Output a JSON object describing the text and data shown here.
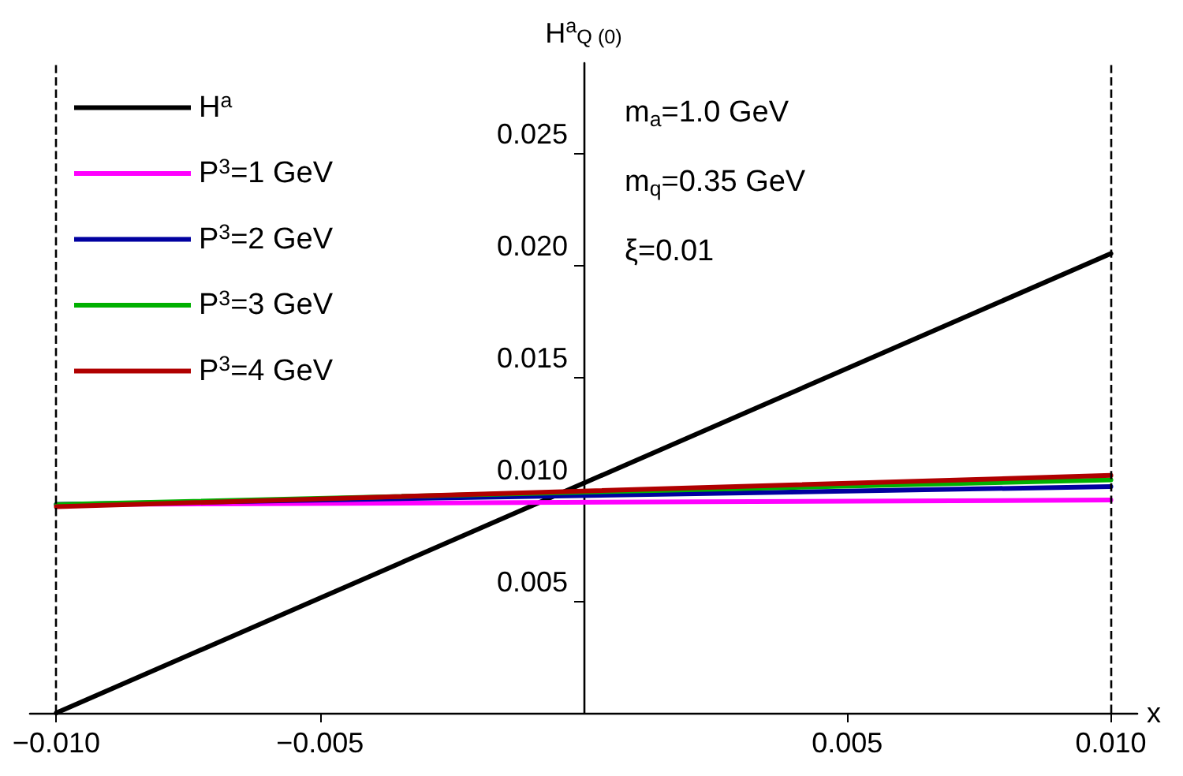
{
  "chart_data": {
    "type": "line",
    "ylabel": "H$^{a}$$_{Q (0)}$",
    "xlabel": "x",
    "xlim": [
      -0.0105,
      0.0105
    ],
    "ylim": [
      0,
      0.029
    ],
    "xticks": [
      {
        "value": -0.01,
        "label": "−0.010"
      },
      {
        "value": -0.005,
        "label": "−0.005"
      },
      {
        "value": 0.005,
        "label": "0.005"
      },
      {
        "value": 0.01,
        "label": "0.010"
      }
    ],
    "yticks": [
      {
        "value": 0.005,
        "label": "0.005"
      },
      {
        "value": 0.01,
        "label": "0.010"
      },
      {
        "value": 0.015,
        "label": "0.015"
      },
      {
        "value": 0.02,
        "label": "0.020"
      },
      {
        "value": 0.025,
        "label": "0.025"
      }
    ],
    "x": [
      -0.01,
      0.01
    ],
    "series": [
      {
        "name": "H$^{a}$",
        "color": "#000000",
        "values": [
          0,
          0.0205
        ]
      },
      {
        "name": "P$^{3}$=1 GeV",
        "color": "#ff00ff",
        "values": [
          0.0093,
          0.0095
        ]
      },
      {
        "name": "P$^{3}$=2 GeV",
        "color": "#0000a0",
        "values": [
          0.0093,
          0.0101
        ]
      },
      {
        "name": "P$^{3}$=3 GeV",
        "color": "#00b000",
        "values": [
          0.0093,
          0.0104
        ]
      },
      {
        "name": "P$^{3}$=4 GeV",
        "color": "#b00000",
        "values": [
          0.0092,
          0.0106
        ]
      }
    ],
    "ref_lines": [
      {
        "axis": "x",
        "value": -0.01,
        "line_style": "dashed",
        "color": "#000000"
      },
      {
        "axis": "x",
        "value": 0.01,
        "line_style": "dashed",
        "color": "#000000"
      }
    ],
    "annotations": [
      "m$_{a}$=1.0 GeV",
      "m$_{q}$=0.35 GeV",
      "ξ=0.01"
    ],
    "legend": "top left",
    "marker": "none",
    "line_style": "solid",
    "grid": false
  }
}
